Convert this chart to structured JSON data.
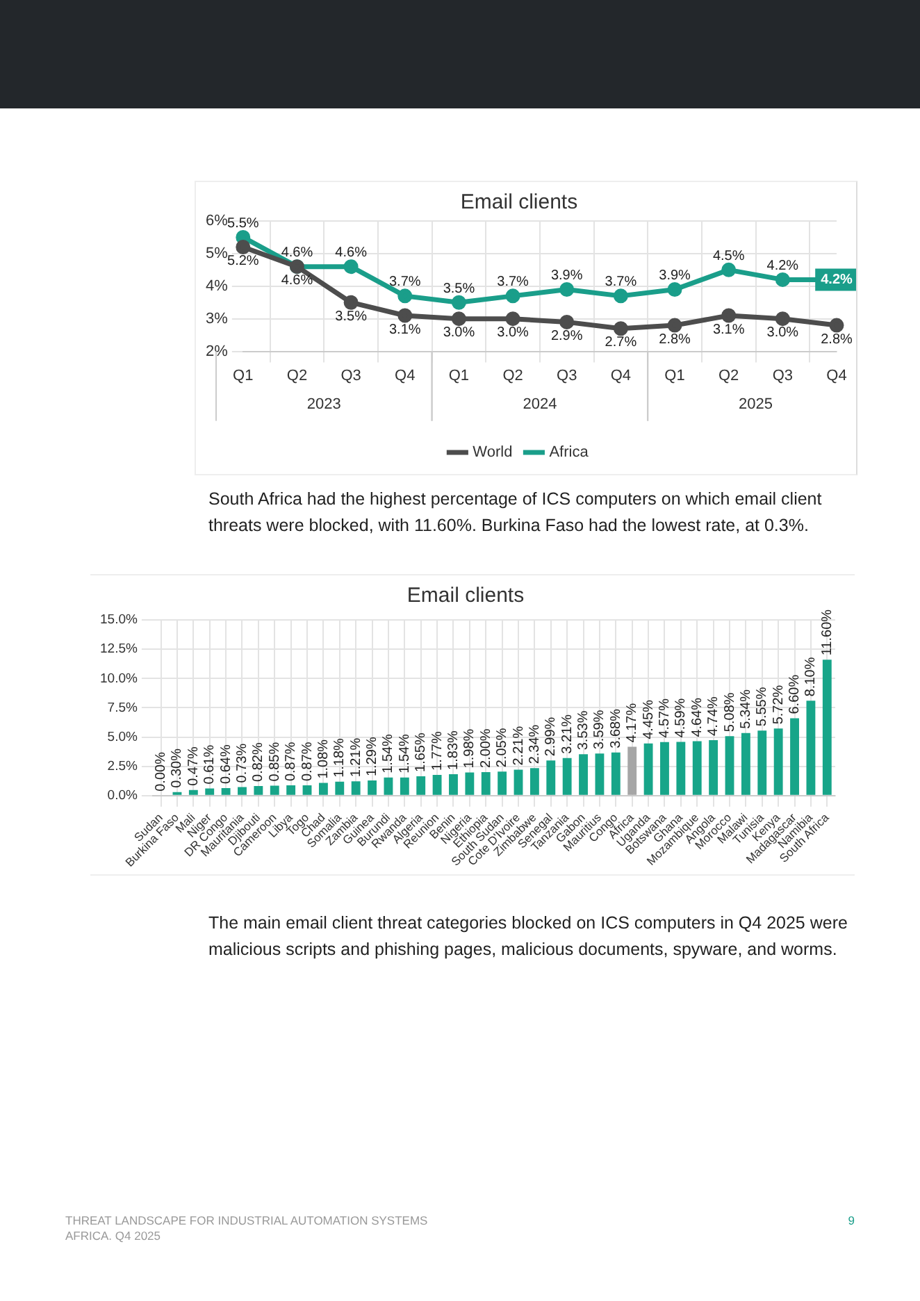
{
  "chart_data": [
    {
      "type": "line",
      "title": "Email clients",
      "categories": [
        "Q1",
        "Q2",
        "Q3",
        "Q4",
        "Q1",
        "Q2",
        "Q3",
        "Q4",
        "Q1",
        "Q2",
        "Q3",
        "Q4"
      ],
      "series": [
        {
          "name": "World",
          "color": "#4d4d4d",
          "values": [
            5.2,
            4.6,
            3.5,
            3.1,
            3.0,
            3.0,
            2.9,
            2.7,
            2.8,
            3.1,
            3.0,
            2.8
          ],
          "value_labels": [
            "5.2%",
            "4.6%",
            "3.5%",
            "3.1%",
            "3.0%",
            "3.0%",
            "2.9%",
            "2.7%",
            "2.8%",
            "3.1%",
            "3.0%",
            "2.8%"
          ]
        },
        {
          "name": "Africa",
          "color": "#1a9e8a",
          "values": [
            5.5,
            4.6,
            4.6,
            3.7,
            3.5,
            3.7,
            3.9,
            3.7,
            3.9,
            4.5,
            4.2,
            4.2
          ],
          "value_labels": [
            "5.5%",
            "4.6%",
            "4.6%",
            "3.7%",
            "3.5%",
            "3.7%",
            "3.9%",
            "3.7%",
            "3.9%",
            "4.5%",
            "4.2%",
            "4.2%"
          ]
        }
      ],
      "ylim": [
        2,
        6
      ],
      "yticks": [
        {
          "value": 2,
          "label": "2%"
        },
        {
          "value": 3,
          "label": "3%"
        },
        {
          "value": 4,
          "label": "4%"
        },
        {
          "value": 5,
          "label": "5%"
        },
        {
          "value": 6,
          "label": "6%"
        }
      ],
      "grid": true,
      "legend": "bottom",
      "marker": "circle",
      "line_style": "solid",
      "annotations": [
        "2023",
        "2024",
        "2025"
      ]
    },
    {
      "type": "bar",
      "title": "Email clients",
      "categories": [
        "Sudan",
        "Burkina Faso",
        "Mali",
        "Niger",
        "DR Congo",
        "Mauritania",
        "Djibouti",
        "Cameroon",
        "Libya",
        "Togo",
        "Chad",
        "Somalia",
        "Zambia",
        "Guinea",
        "Burundi",
        "Rwanda",
        "Algeria",
        "Reunion",
        "Benin",
        "Nigeria",
        "Ethiopia",
        "South Sudan",
        "Cote D'Ivoire",
        "Zimbabwe",
        "Senegal",
        "Tanzania",
        "Gabon",
        "Mauritius",
        "Congo",
        "Africa",
        "Uganda",
        "Botswana",
        "Ghana",
        "Mozambique",
        "Angola",
        "Morocco",
        "Malawi",
        "Tunisia",
        "Kenya",
        "Madagascar",
        "Namibia",
        "South Africa"
      ],
      "values": [
        0.0,
        0.3,
        0.47,
        0.61,
        0.64,
        0.73,
        0.82,
        0.85,
        0.87,
        0.87,
        1.08,
        1.18,
        1.21,
        1.29,
        1.54,
        1.54,
        1.65,
        1.77,
        1.83,
        1.98,
        2.0,
        2.05,
        2.21,
        2.34,
        2.99,
        3.21,
        3.53,
        3.59,
        3.68,
        4.17,
        4.45,
        4.57,
        4.59,
        4.64,
        4.74,
        5.08,
        5.34,
        5.55,
        5.72,
        6.6,
        8.1,
        11.6
      ],
      "value_labels": [
        "0.00%",
        "0.30%",
        "0.47%",
        "0.61%",
        "0.64%",
        "0.73%",
        "0.82%",
        "0.85%",
        "0.87%",
        "0.87%",
        "1.08%",
        "1.18%",
        "1.21%",
        "1.29%",
        "1.54%",
        "1.54%",
        "1.65%",
        "1.77%",
        "1.83%",
        "1.98%",
        "2.00%",
        "2.05%",
        "2.21%",
        "2.34%",
        "2.99%",
        "3.21%",
        "3.53%",
        "3.59%",
        "3.68%",
        "4.17%",
        "4.45%",
        "4.57%",
        "4.59%",
        "4.64%",
        "4.74%",
        "5.08%",
        "5.34%",
        "5.55%",
        "5.72%",
        "6.60%",
        "8.10%",
        "11.60%"
      ],
      "colors": [
        "#17a589",
        "#17a589",
        "#17a589",
        "#17a589",
        "#17a589",
        "#17a589",
        "#17a589",
        "#17a589",
        "#17a589",
        "#17a589",
        "#17a589",
        "#17a589",
        "#17a589",
        "#17a589",
        "#17a589",
        "#17a589",
        "#17a589",
        "#17a589",
        "#17a589",
        "#17a589",
        "#17a589",
        "#17a589",
        "#17a589",
        "#17a589",
        "#17a589",
        "#17a589",
        "#17a589",
        "#17a589",
        "#17a589",
        "#a6a6a6",
        "#17a589",
        "#17a589",
        "#17a589",
        "#17a589",
        "#17a589",
        "#17a589",
        "#17a589",
        "#17a589",
        "#17a589",
        "#17a589",
        "#17a589",
        "#17a589"
      ],
      "ylim": [
        0,
        15
      ],
      "yticks": [
        {
          "value": 0,
          "label": "0.0%"
        },
        {
          "value": 2.5,
          "label": "2.5%"
        },
        {
          "value": 5,
          "label": "5.0%"
        },
        {
          "value": 7.5,
          "label": "7.5%"
        },
        {
          "value": 10,
          "label": "10.0%"
        },
        {
          "value": 12.5,
          "label": "12.5%"
        },
        {
          "value": 15,
          "label": "15.0%"
        }
      ],
      "grid": true,
      "annotations": [
        "South Africa had the highest percentage of ICS computers on which email client threats were blocked, with 11.60%. Burkina Faso had the lowest rate, at 0.3%.",
        "The main email client threat categories blocked on ICS computers in Q4 2025 were malicious scripts and phishing pages, malicious documents, spyware, and worms.",
        "THREAT LANDSCAPE FOR INDUSTRIAL AUTOMATION SYSTEMS",
        "AFRICA. Q4 2025",
        "9"
      ]
    }
  ]
}
